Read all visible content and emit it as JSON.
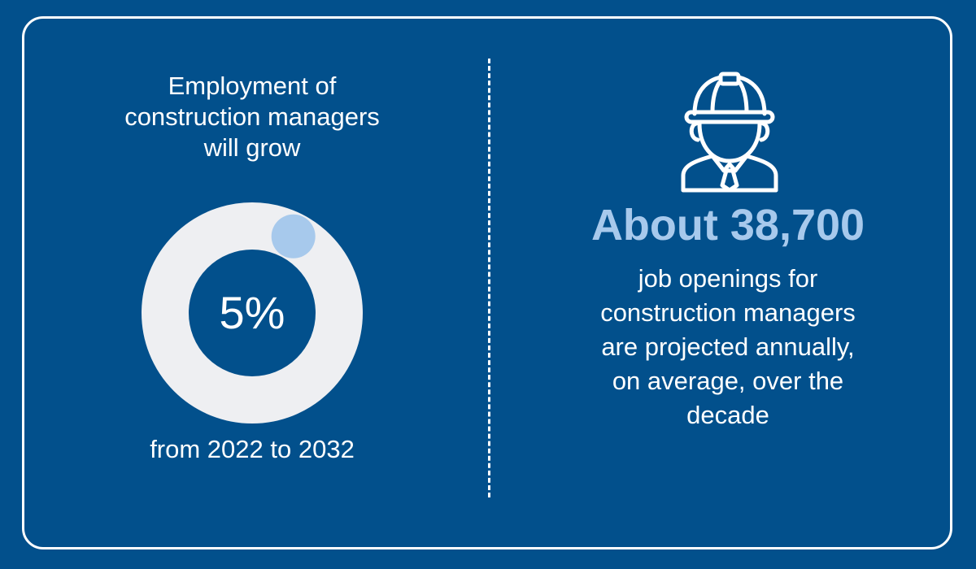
{
  "left_panel": {
    "heading": "Employment of\nconstruction managers\nwill grow",
    "growth_value": "5%",
    "growth_percent": 5,
    "footer": "from 2022 to 2032"
  },
  "right_panel": {
    "icon": "construction-worker-hardhat-icon",
    "stat": "About 38,700",
    "body": "job openings for\nconstruction managers\nare projected annually,\non average, over the\ndecade"
  },
  "colors": {
    "background": "#02508c",
    "ring": "#eeeff2",
    "ring_marker": "#a7c9ec",
    "accent_text": "#a7c9ec",
    "text": "#ffffff"
  }
}
